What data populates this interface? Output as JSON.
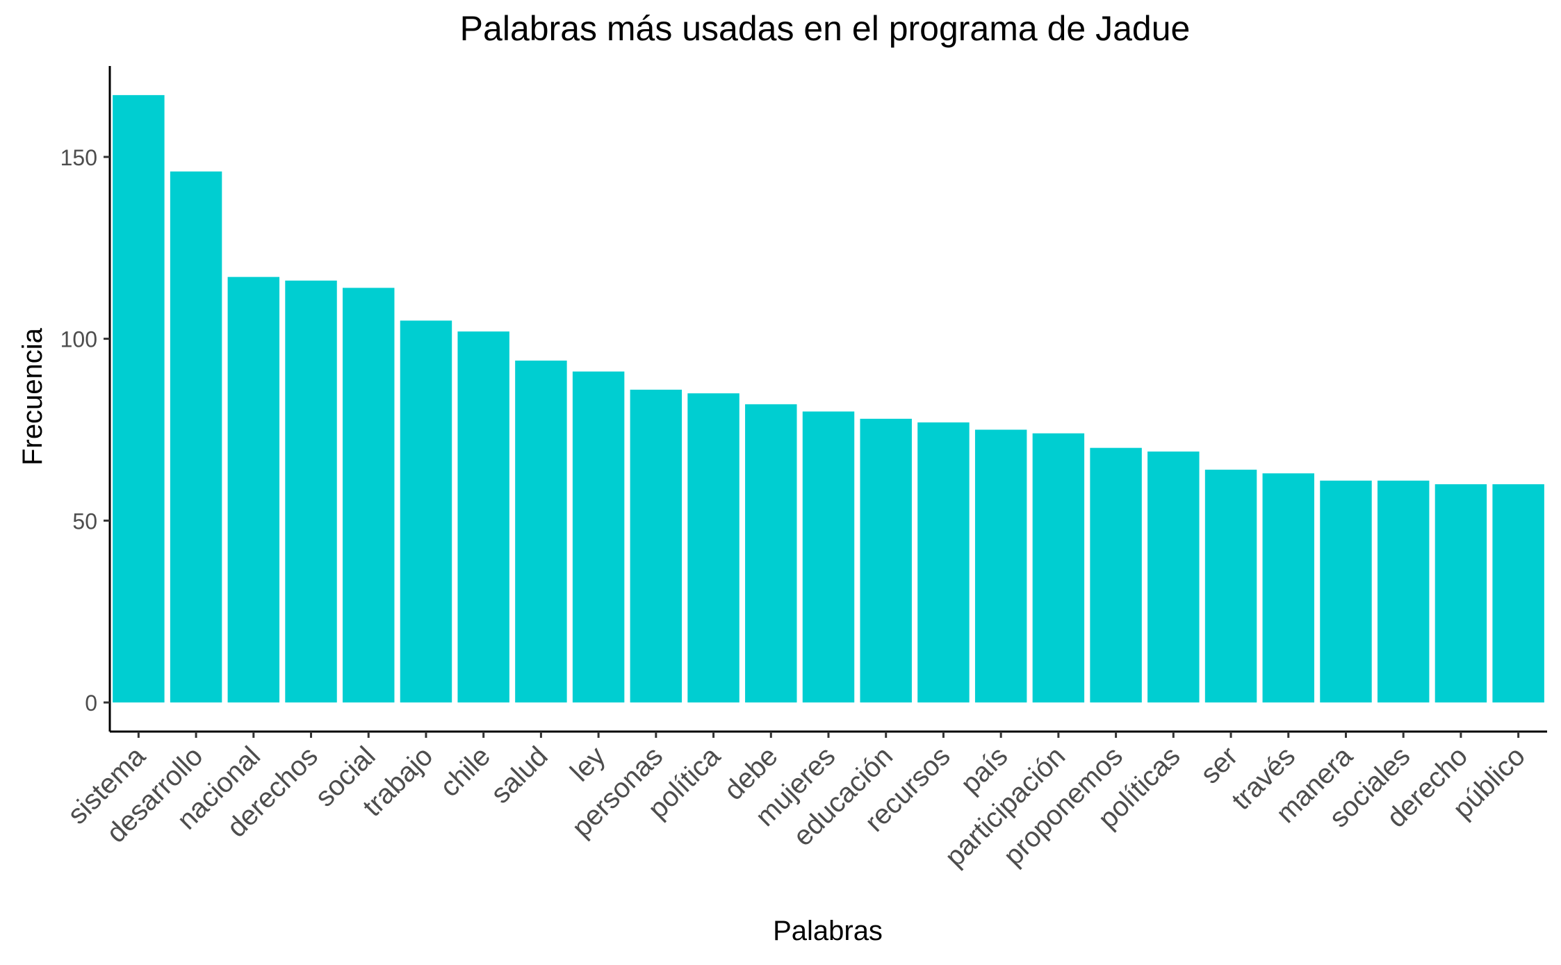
{
  "chart_data": {
    "type": "bar",
    "title": "Palabras más usadas en el programa de Jadue",
    "xlabel": "Palabras",
    "ylabel": "Frecuencia",
    "categories": [
      "sistema",
      "desarrollo",
      "nacional",
      "derechos",
      "social",
      "trabajo",
      "chile",
      "salud",
      "ley",
      "personas",
      "política",
      "debe",
      "mujeres",
      "educación",
      "recursos",
      "país",
      "participación",
      "proponemos",
      "políticas",
      "ser",
      "través",
      "manera",
      "sociales",
      "derecho",
      "público"
    ],
    "values": [
      167,
      146,
      117,
      116,
      114,
      105,
      102,
      94,
      91,
      86,
      85,
      82,
      80,
      78,
      77,
      75,
      74,
      70,
      69,
      64,
      63,
      61,
      61,
      60,
      60
    ],
    "yticks": [
      0,
      50,
      100,
      150
    ],
    "ylim": [
      -8,
      175
    ],
    "bar_color": "#00CED1",
    "grid": false,
    "legend": "none"
  }
}
